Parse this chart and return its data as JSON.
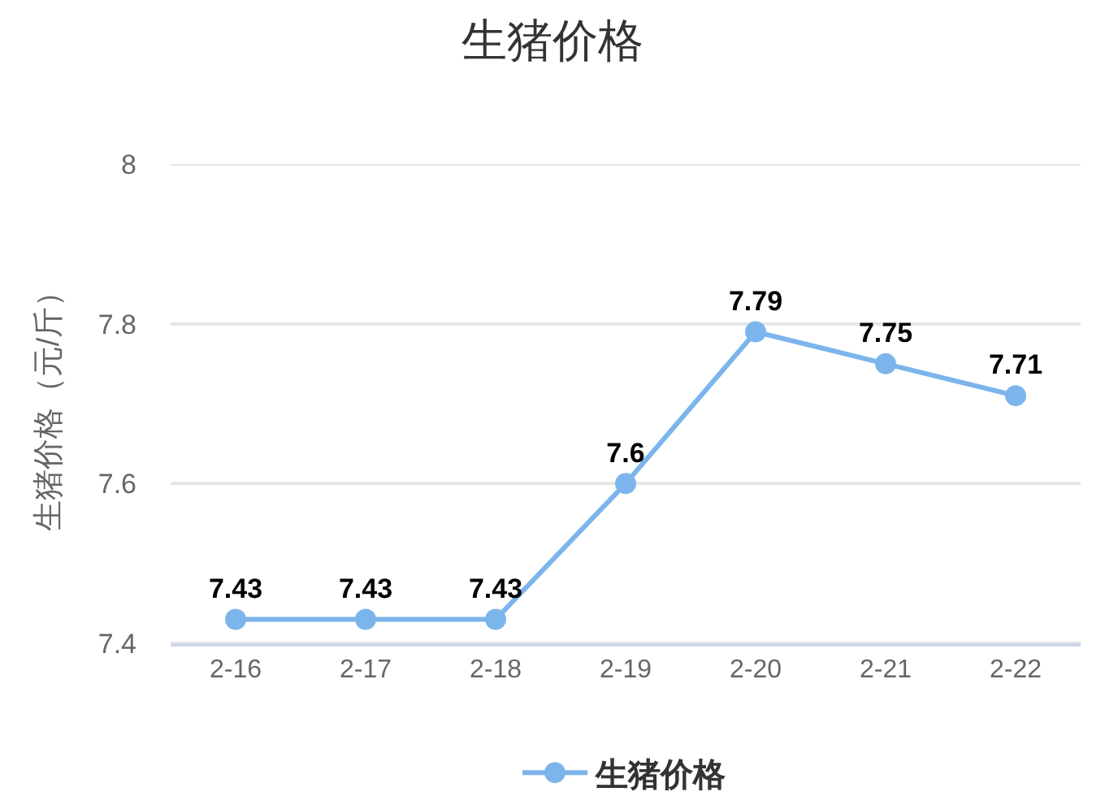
{
  "chart_data": {
    "type": "line",
    "title": "生猪价格",
    "ylabel": "生猪价格（元/斤）",
    "categories": [
      "2-16",
      "2-17",
      "2-18",
      "2-19",
      "2-20",
      "2-21",
      "2-22"
    ],
    "series": [
      {
        "name": "生猪价格",
        "color": "#7cb5ec",
        "values": [
          7.43,
          7.43,
          7.43,
          7.6,
          7.79,
          7.75,
          7.71
        ]
      }
    ],
    "ylim": [
      7.4,
      8
    ],
    "yticks": [
      7.4,
      7.6,
      7.8,
      8
    ],
    "grid": "y",
    "legend": "bottom",
    "marker": "circle",
    "line_style": "solid",
    "data_labels": true
  }
}
